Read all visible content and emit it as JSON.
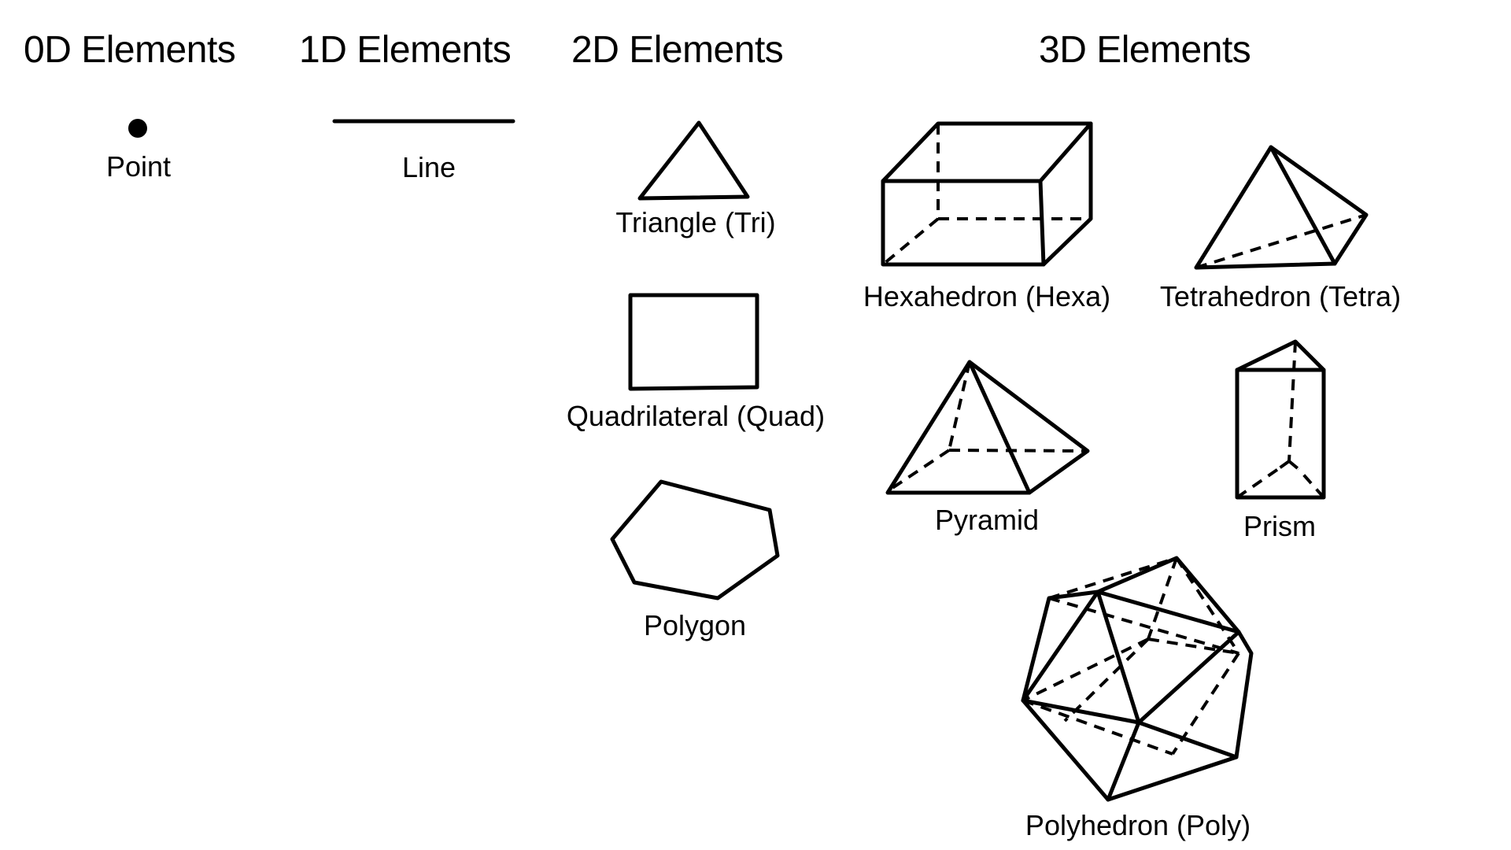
{
  "headings": {
    "d0": "0D Elements",
    "d1": "1D Elements",
    "d2": "2D Elements",
    "d3": "3D Elements"
  },
  "elements_0d": {
    "point": "Point"
  },
  "elements_1d": {
    "line": "Line"
  },
  "elements_2d": {
    "triangle": "Triangle (Tri)",
    "quadrilateral": "Quadrilateral (Quad)",
    "polygon": "Polygon"
  },
  "elements_3d": {
    "hexahedron": "Hexahedron (Hexa)",
    "tetrahedron": "Tetrahedron (Tetra)",
    "pyramid": "Pyramid",
    "prism": "Prism",
    "polyhedron": "Polyhedron (Poly)"
  },
  "colors": {
    "stroke": "#000000",
    "background": "#ffffff"
  }
}
